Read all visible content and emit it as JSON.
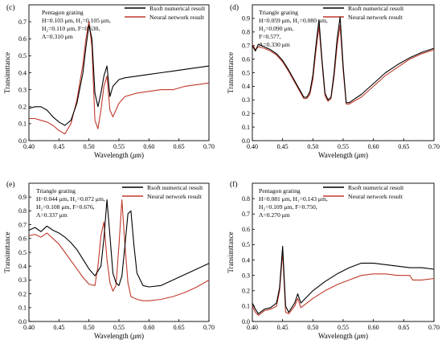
{
  "chart_data": [
    {
      "type": "line",
      "panel": "(c)",
      "annotation": [
        "Pentagon grating",
        "H=0.103 μm, H₁=0.105 μm,",
        "H₂=0.110 μm, F=0.630,",
        "Λ=0.310 μm"
      ],
      "xlabel": "Wavelength (μm)",
      "ylabel": "Transimttance",
      "xlim": [
        0.4,
        0.7
      ],
      "ylim": [
        0.0,
        0.8
      ],
      "xticks": [
        "0.40",
        "0.45",
        "0.50",
        "0.55",
        "0.60",
        "0.65",
        "0.70"
      ],
      "yticks": [
        "0.0",
        "0.1",
        "0.2",
        "0.3",
        "0.4",
        "0.5",
        "0.6",
        "0.7"
      ],
      "legend": "top-right",
      "series": [
        {
          "name": "Rsoft numerical result",
          "color": "#000000",
          "x": [
            0.4,
            0.41,
            0.42,
            0.43,
            0.44,
            0.45,
            0.46,
            0.47,
            0.48,
            0.49,
            0.495,
            0.5,
            0.505,
            0.51,
            0.515,
            0.52,
            0.525,
            0.53,
            0.535,
            0.54,
            0.55,
            0.56,
            0.58,
            0.6,
            0.62,
            0.64,
            0.66,
            0.68,
            0.7
          ],
          "y": [
            0.19,
            0.2,
            0.2,
            0.18,
            0.14,
            0.11,
            0.09,
            0.12,
            0.22,
            0.4,
            0.55,
            0.68,
            0.6,
            0.28,
            0.2,
            0.28,
            0.38,
            0.44,
            0.26,
            0.32,
            0.36,
            0.37,
            0.38,
            0.39,
            0.4,
            0.41,
            0.42,
            0.43,
            0.44
          ]
        },
        {
          "name": "Neural network result",
          "color": "#c0392b",
          "x": [
            0.4,
            0.41,
            0.42,
            0.43,
            0.44,
            0.45,
            0.46,
            0.47,
            0.48,
            0.49,
            0.495,
            0.5,
            0.505,
            0.51,
            0.515,
            0.52,
            0.525,
            0.53,
            0.535,
            0.54,
            0.55,
            0.56,
            0.58,
            0.6,
            0.62,
            0.64,
            0.65,
            0.66,
            0.68,
            0.7
          ],
          "y": [
            0.13,
            0.13,
            0.12,
            0.11,
            0.09,
            0.06,
            0.04,
            0.1,
            0.24,
            0.45,
            0.6,
            0.7,
            0.55,
            0.12,
            0.07,
            0.18,
            0.32,
            0.38,
            0.18,
            0.14,
            0.22,
            0.26,
            0.28,
            0.29,
            0.3,
            0.3,
            0.31,
            0.32,
            0.33,
            0.34
          ]
        }
      ]
    },
    {
      "type": "line",
      "panel": "(d)",
      "annotation": [
        "Triangle grating",
        "H=0.059 μm, H₁=0.080 μm,",
        "H₂=0.090 μm,",
        "F=0.577,",
        "Λ=0.330 μm"
      ],
      "xlabel": "Wavelength (μm)",
      "ylabel": "Transimttance",
      "xlim": [
        0.4,
        0.7
      ],
      "ylim": [
        0.0,
        1.0
      ],
      "xticks": [
        "0.40",
        "0.45",
        "0.50",
        "0.55",
        "0.60",
        "0.65",
        "0.70"
      ],
      "yticks": [
        "0.0",
        "0.1",
        "0.2",
        "0.3",
        "0.4",
        "0.5",
        "0.6",
        "0.7",
        "0.8",
        "0.9"
      ],
      "legend": "top-right",
      "series": [
        {
          "name": "Rsoft numerical result",
          "color": "#000000",
          "x": [
            0.4,
            0.405,
            0.41,
            0.42,
            0.43,
            0.44,
            0.45,
            0.46,
            0.47,
            0.48,
            0.485,
            0.49,
            0.495,
            0.5,
            0.505,
            0.51,
            0.515,
            0.52,
            0.525,
            0.53,
            0.535,
            0.54,
            0.545,
            0.55,
            0.555,
            0.56,
            0.58,
            0.6,
            0.62,
            0.64,
            0.66,
            0.68,
            0.7
          ],
          "y": [
            0.7,
            0.66,
            0.71,
            0.69,
            0.67,
            0.64,
            0.59,
            0.52,
            0.44,
            0.36,
            0.32,
            0.32,
            0.36,
            0.48,
            0.7,
            0.89,
            0.6,
            0.35,
            0.3,
            0.32,
            0.5,
            0.75,
            0.91,
            0.55,
            0.28,
            0.28,
            0.34,
            0.42,
            0.5,
            0.56,
            0.61,
            0.65,
            0.68
          ]
        },
        {
          "name": "Neural network result",
          "color": "#c0392b",
          "x": [
            0.4,
            0.405,
            0.41,
            0.42,
            0.43,
            0.44,
            0.45,
            0.46,
            0.47,
            0.48,
            0.485,
            0.49,
            0.495,
            0.5,
            0.505,
            0.51,
            0.515,
            0.52,
            0.525,
            0.53,
            0.535,
            0.54,
            0.545,
            0.55,
            0.555,
            0.56,
            0.58,
            0.6,
            0.62,
            0.64,
            0.66,
            0.68,
            0.7
          ],
          "y": [
            0.71,
            0.67,
            0.69,
            0.68,
            0.66,
            0.63,
            0.58,
            0.51,
            0.43,
            0.35,
            0.31,
            0.31,
            0.34,
            0.45,
            0.66,
            0.84,
            0.58,
            0.33,
            0.29,
            0.31,
            0.47,
            0.7,
            0.85,
            0.52,
            0.27,
            0.27,
            0.32,
            0.4,
            0.48,
            0.54,
            0.6,
            0.64,
            0.67
          ]
        }
      ]
    },
    {
      "type": "line",
      "panel": "(e)",
      "annotation": [
        "Triangle grating",
        "H=0.044 μm, H₁=0.072 μm,",
        "H₂=0.108 μm, F=0.676,",
        "Λ=0.337 μm"
      ],
      "xlabel": "Wavelength (μm)",
      "ylabel": "Transimttance",
      "xlim": [
        0.4,
        0.7
      ],
      "ylim": [
        0.0,
        1.0
      ],
      "xticks": [
        "0.40",
        "0.45",
        "0.50",
        "0.55",
        "0.60",
        "0.65",
        "0.70"
      ],
      "yticks": [
        "0.0",
        "0.1",
        "0.2",
        "0.3",
        "0.4",
        "0.5",
        "0.6",
        "0.7",
        "0.8",
        "0.9"
      ],
      "legend": "top-right",
      "series": [
        {
          "name": "Rsoft numerical result",
          "color": "#000000",
          "x": [
            0.4,
            0.41,
            0.42,
            0.43,
            0.44,
            0.45,
            0.46,
            0.47,
            0.48,
            0.49,
            0.5,
            0.51,
            0.52,
            0.525,
            0.53,
            0.535,
            0.54,
            0.545,
            0.55,
            0.555,
            0.56,
            0.565,
            0.57,
            0.575,
            0.58,
            0.59,
            0.6,
            0.62,
            0.64,
            0.66,
            0.68,
            0.7
          ],
          "y": [
            0.66,
            0.68,
            0.65,
            0.69,
            0.66,
            0.64,
            0.61,
            0.57,
            0.52,
            0.45,
            0.38,
            0.33,
            0.4,
            0.6,
            0.88,
            0.62,
            0.35,
            0.28,
            0.26,
            0.33,
            0.55,
            0.78,
            0.8,
            0.55,
            0.35,
            0.26,
            0.25,
            0.26,
            0.3,
            0.34,
            0.38,
            0.42
          ]
        },
        {
          "name": "Neural network result",
          "color": "#c0392b",
          "x": [
            0.4,
            0.41,
            0.42,
            0.43,
            0.44,
            0.45,
            0.46,
            0.47,
            0.48,
            0.49,
            0.5,
            0.51,
            0.515,
            0.52,
            0.525,
            0.53,
            0.535,
            0.54,
            0.545,
            0.55,
            0.555,
            0.56,
            0.565,
            0.57,
            0.58,
            0.59,
            0.6,
            0.62,
            0.64,
            0.66,
            0.68,
            0.7
          ],
          "y": [
            0.62,
            0.63,
            0.61,
            0.64,
            0.6,
            0.56,
            0.5,
            0.44,
            0.38,
            0.32,
            0.27,
            0.26,
            0.4,
            0.62,
            0.72,
            0.45,
            0.28,
            0.22,
            0.26,
            0.55,
            0.88,
            0.55,
            0.28,
            0.18,
            0.16,
            0.15,
            0.15,
            0.16,
            0.18,
            0.21,
            0.25,
            0.3
          ]
        }
      ]
    },
    {
      "type": "line",
      "panel": "(f)",
      "annotation": [
        "Pentagon grating",
        "H=0.081 μm, H₁=0.143 μm,",
        "H₂=0.109 μm, F=0.750,",
        "Λ=0.270 μm"
      ],
      "xlabel": "Wavelength (μm)",
      "ylabel": "Transimttance",
      "xlim": [
        0.4,
        0.7
      ],
      "ylim": [
        0.0,
        0.9
      ],
      "xticks": [
        "0.40",
        "0.45",
        "0.50",
        "0.55",
        "0.60",
        "0.65",
        "0.70"
      ],
      "yticks": [
        "0.0",
        "0.1",
        "0.2",
        "0.3",
        "0.4",
        "0.5",
        "0.6",
        "0.7",
        "0.8"
      ],
      "legend": "top-right",
      "series": [
        {
          "name": "Rsoft numerical result",
          "color": "#000000",
          "x": [
            0.4,
            0.405,
            0.41,
            0.42,
            0.43,
            0.44,
            0.445,
            0.45,
            0.455,
            0.46,
            0.47,
            0.475,
            0.48,
            0.49,
            0.5,
            0.52,
            0.54,
            0.56,
            0.58,
            0.6,
            0.62,
            0.64,
            0.66,
            0.68,
            0.7
          ],
          "y": [
            0.12,
            0.08,
            0.05,
            0.08,
            0.09,
            0.12,
            0.22,
            0.49,
            0.1,
            0.06,
            0.12,
            0.18,
            0.12,
            0.16,
            0.2,
            0.26,
            0.31,
            0.35,
            0.38,
            0.38,
            0.37,
            0.36,
            0.35,
            0.35,
            0.34
          ]
        },
        {
          "name": "Neural network result",
          "color": "#c0392b",
          "x": [
            0.4,
            0.405,
            0.41,
            0.42,
            0.43,
            0.44,
            0.445,
            0.45,
            0.455,
            0.46,
            0.47,
            0.475,
            0.48,
            0.49,
            0.5,
            0.52,
            0.54,
            0.56,
            0.58,
            0.6,
            0.62,
            0.64,
            0.66,
            0.665,
            0.68,
            0.7
          ],
          "y": [
            0.1,
            0.06,
            0.04,
            0.07,
            0.08,
            0.1,
            0.2,
            0.45,
            0.06,
            0.05,
            0.1,
            0.15,
            0.09,
            0.12,
            0.15,
            0.2,
            0.24,
            0.27,
            0.3,
            0.31,
            0.31,
            0.3,
            0.3,
            0.27,
            0.27,
            0.28
          ]
        }
      ]
    }
  ]
}
